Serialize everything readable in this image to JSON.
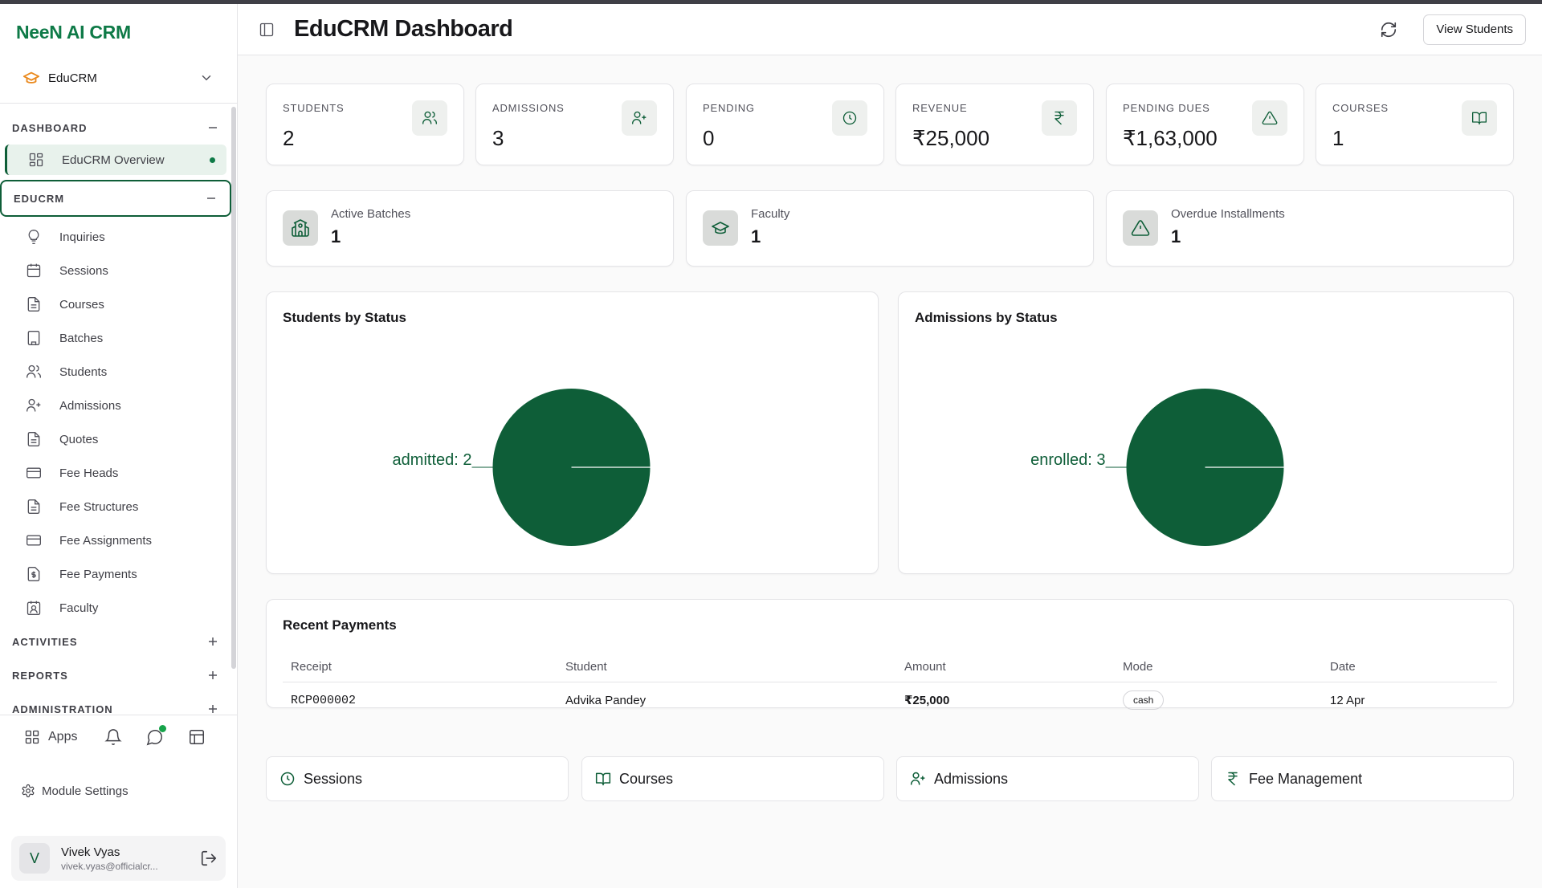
{
  "brand": "NeeN AI CRM",
  "workspace": {
    "label": "EduCRM"
  },
  "sidebar": {
    "sections": [
      {
        "title": "DASHBOARD",
        "expanded": true,
        "items": [
          {
            "label": "EduCRM Overview",
            "icon": "dashboard-grid-icon",
            "selected": true
          }
        ]
      },
      {
        "title": "EDUCRM",
        "expanded": true,
        "items": [
          {
            "label": "Inquiries",
            "icon": "lightbulb-icon"
          },
          {
            "label": "Sessions",
            "icon": "calendar-icon"
          },
          {
            "label": "Courses",
            "icon": "document-icon"
          },
          {
            "label": "Batches",
            "icon": "building-icon"
          },
          {
            "label": "Students",
            "icon": "users-icon"
          },
          {
            "label": "Admissions",
            "icon": "user-plus-icon"
          },
          {
            "label": "Quotes",
            "icon": "document-icon"
          },
          {
            "label": "Fee Heads",
            "icon": "credit-card-icon"
          },
          {
            "label": "Fee Structures",
            "icon": "document-icon"
          },
          {
            "label": "Fee Assignments",
            "icon": "credit-card-icon"
          },
          {
            "label": "Fee Payments",
            "icon": "receipt-dollar-icon"
          },
          {
            "label": "Faculty",
            "icon": "contact-card-icon"
          }
        ]
      },
      {
        "title": "ACTIVITIES",
        "expanded": false
      },
      {
        "title": "REPORTS",
        "expanded": false
      },
      {
        "title": "ADMINISTRATION",
        "expanded": false
      }
    ],
    "apps_label": "Apps",
    "module_settings": "Module Settings",
    "user": {
      "initial": "V",
      "name": "Vivek Vyas",
      "email": "vivek.vyas@officialcr..."
    }
  },
  "header": {
    "title": "EduCRM Dashboard",
    "view_students": "View Students"
  },
  "stats": [
    {
      "label": "STUDENTS",
      "value": "2",
      "icon": "users-icon"
    },
    {
      "label": "ADMISSIONS",
      "value": "3",
      "icon": "user-plus-icon"
    },
    {
      "label": "PENDING",
      "value": "0",
      "icon": "clock-icon"
    },
    {
      "label": "REVENUE",
      "value": "₹25,000",
      "icon": "rupee-icon"
    },
    {
      "label": "PENDING DUES",
      "value": "₹1,63,000",
      "icon": "warning-icon"
    },
    {
      "label": "COURSES",
      "value": "1",
      "icon": "book-icon"
    }
  ],
  "mini_stats": [
    {
      "label": "Active Batches",
      "value": "1",
      "icon": "school-icon"
    },
    {
      "label": "Faculty",
      "value": "1",
      "icon": "graduation-cap-icon"
    },
    {
      "label": "Overdue Installments",
      "value": "1",
      "icon": "warning-icon"
    }
  ],
  "colors": {
    "accent": "#0e7a47",
    "pie": "#0e5e38"
  },
  "chart_data": [
    {
      "type": "pie",
      "title": "Students by Status",
      "slices": [
        {
          "label": "admitted",
          "value": 2
        }
      ]
    },
    {
      "type": "pie",
      "title": "Admissions by Status",
      "slices": [
        {
          "label": "enrolled",
          "value": 3
        }
      ]
    }
  ],
  "recent_payments": {
    "title": "Recent Payments",
    "columns": [
      "Receipt",
      "Student",
      "Amount",
      "Mode",
      "Date"
    ],
    "rows": [
      {
        "receipt": "RCP000002",
        "student": "Advika Pandey",
        "amount": "₹25,000",
        "mode": "cash",
        "date": "12 Apr"
      }
    ]
  },
  "quick_links": [
    {
      "label": "Sessions",
      "icon": "clock-icon"
    },
    {
      "label": "Courses",
      "icon": "book-icon"
    },
    {
      "label": "Admissions",
      "icon": "user-plus-icon"
    },
    {
      "label": "Fee Management",
      "icon": "rupee-icon"
    }
  ]
}
